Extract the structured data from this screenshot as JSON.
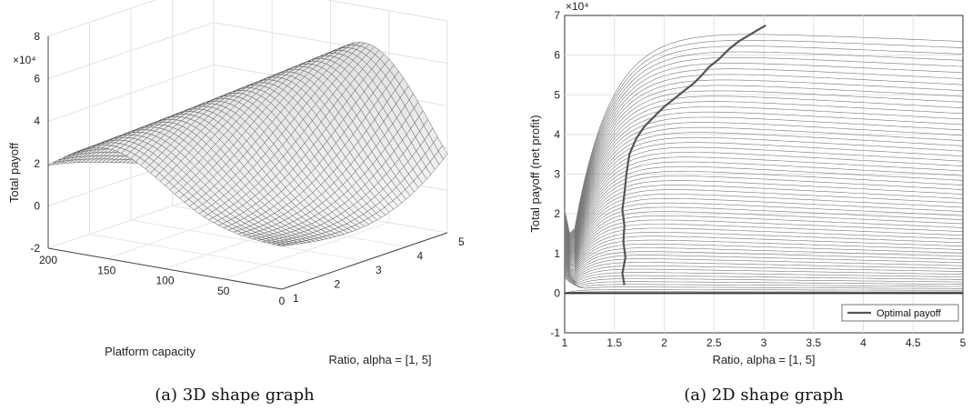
{
  "chart_data": [
    {
      "type": "surface",
      "caption": "(a) 3D shape graph",
      "zlabel": "Total payoff",
      "xlabel": "Platform capacity",
      "ylabel": "Ratio, alpha = [1, 5]",
      "z_exponent": "×10⁴",
      "zlim": [
        -20000,
        80000
      ],
      "z_ticks": [
        "-2",
        "0",
        "2",
        "4",
        "6",
        "8"
      ],
      "capacity_lim": [
        0,
        200
      ],
      "capacity_ticks": [
        "200",
        "150",
        "100",
        "50",
        "0"
      ],
      "ratio_lim": [
        1,
        5
      ],
      "ratio_ticks": [
        "1",
        "2",
        "3",
        "4",
        "5"
      ],
      "grid": true,
      "color": "#505050"
    },
    {
      "type": "line",
      "caption": "(a) 2D shape graph",
      "ylabel": "Total payoff (net profit)",
      "xlabel": "Ratio, alpha = [1, 5]",
      "y_exponent": "×10⁴",
      "xlim": [
        1,
        5
      ],
      "ylim": [
        -10000,
        70000
      ],
      "x_ticks": [
        "1",
        "1.5",
        "2",
        "2.5",
        "3",
        "3.5",
        "4",
        "4.5",
        "5"
      ],
      "y_ticks": [
        "-1",
        "0",
        "1",
        "2",
        "3",
        "4",
        "5",
        "6",
        "7"
      ],
      "grid": true,
      "legend": {
        "position": "bottom-right",
        "entries": [
          "Optimal payoff"
        ]
      },
      "series": [
        {
          "name": "Optimal payoff",
          "color": "#555555",
          "x": [
            1.6,
            1.58,
            1.61,
            1.59,
            1.6,
            1.58,
            1.6,
            1.62,
            1.65,
            1.72,
            1.8,
            1.9,
            2.0,
            2.1,
            2.2,
            2.3,
            2.38,
            2.45,
            2.55,
            2.65,
            2.75,
            2.85,
            2.95,
            3.02
          ],
          "y": [
            2000,
            5000,
            9000,
            13000,
            17000,
            21000,
            25000,
            30000,
            35000,
            39000,
            42000,
            44500,
            47000,
            49000,
            51000,
            53000,
            55000,
            57000,
            59000,
            61500,
            63500,
            65000,
            66500,
            67500
          ]
        }
      ],
      "family": {
        "color": "#777777"
      }
    }
  ]
}
